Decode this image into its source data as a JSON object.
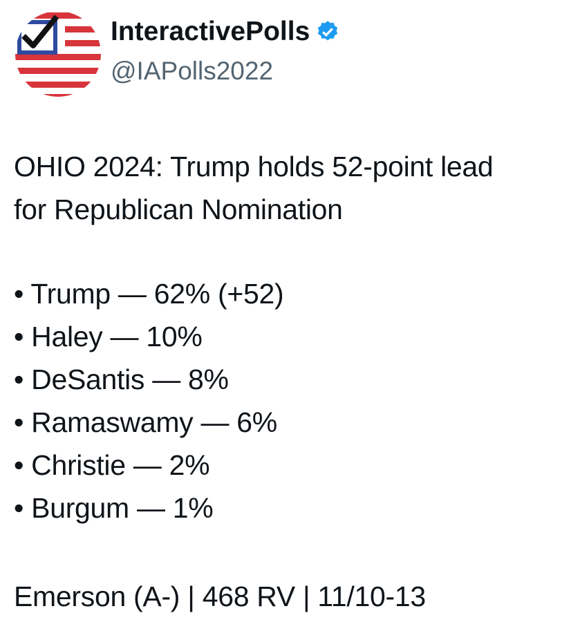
{
  "author": {
    "name": "InteractivePolls",
    "handle": "@IAPolls2022"
  },
  "post": {
    "headline": [
      "OHIO 2024: Trump holds 52-point lead",
      "for Republican Nomination"
    ],
    "bullets": [
      "• Trump — 62% (+52)",
      "• Haley — 10%",
      "• DeSantis — 8%",
      "• Ramaswamy — 6%",
      "• Christie — 2%",
      "• Burgum — 1%"
    ],
    "footer": "Emerson (A-) | 468 RV | 11/10-13"
  }
}
